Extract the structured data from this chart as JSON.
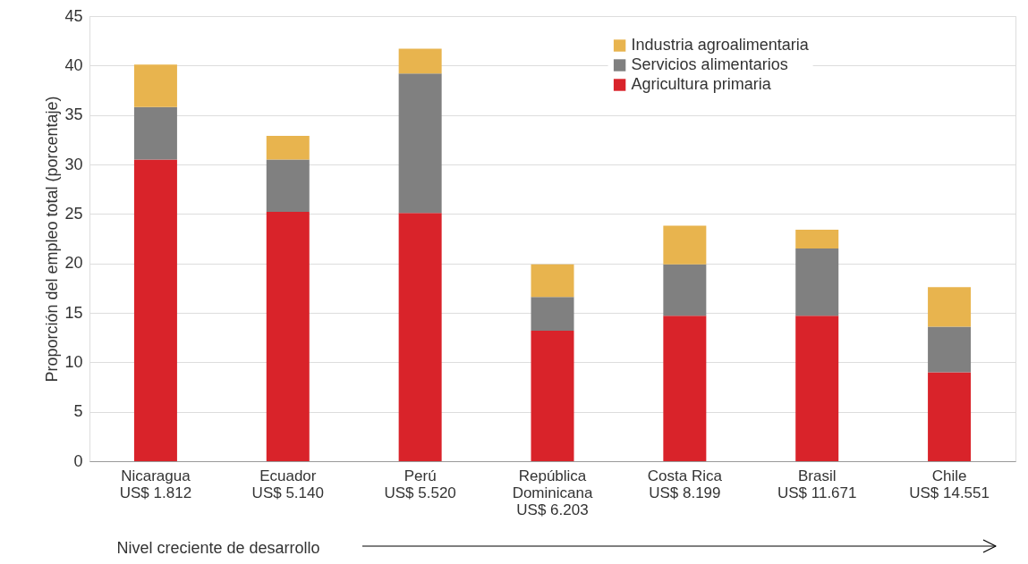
{
  "chart_data": {
    "type": "bar",
    "stacked": true,
    "categories": [
      "Nicaragua\nUS$ 1.812",
      "Ecuador\nUS$ 5.140",
      "Perú\nUS$ 5.520",
      "República\nDominicana\nUS$ 6.203",
      "Costa Rica\nUS$ 8.199",
      "Brasil\nUS$ 11.671",
      "Chile\nUS$ 14.551"
    ],
    "series": [
      {
        "name": "Agricultura primaria",
        "color": "#d9232a",
        "values": [
          30.5,
          25.2,
          25.1,
          13.2,
          14.7,
          14.7,
          9.0
        ]
      },
      {
        "name": "Servicios alimentarios",
        "color": "#808080",
        "values": [
          5.3,
          5.3,
          14.1,
          3.4,
          5.2,
          6.8,
          4.6
        ]
      },
      {
        "name": "Industria agroalimentaria",
        "color": "#e8b44e",
        "values": [
          4.3,
          2.4,
          2.5,
          3.3,
          3.9,
          1.9,
          4.0
        ]
      }
    ],
    "xlabel": "Nivel creciente de desarrollo",
    "ylabel": "Proporción del empleo total (porcentaje)",
    "ylim": [
      0,
      45
    ],
    "yticks": [
      0,
      5,
      10,
      15,
      20,
      25,
      30,
      35,
      40,
      45
    ],
    "grid": "y",
    "legend": "top right"
  }
}
